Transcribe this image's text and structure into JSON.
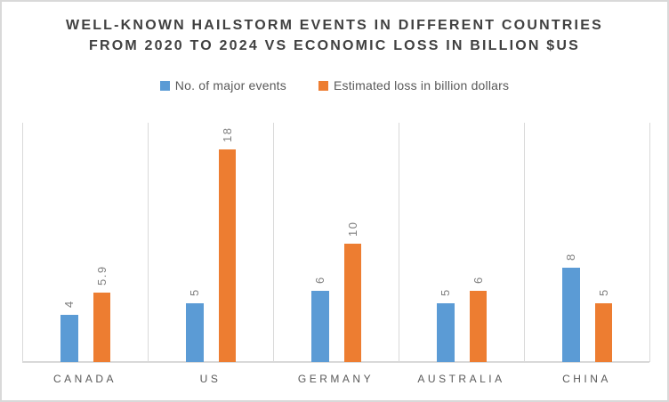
{
  "title": {
    "line1": "WELL-KNOWN HAILSTORM EVENTS IN DIFFERENT COUNTRIES",
    "line2": "FROM 2020 TO 2024 VS ECONOMIC LOSS IN BILLION $US"
  },
  "legend": [
    {
      "label": "No. of major events",
      "color": "#5B9BD5"
    },
    {
      "label": "Estimated loss in billion dollars",
      "color": "#ED7D31"
    }
  ],
  "colors": {
    "events_series": "#5B9BD5",
    "loss_series": "#ED7D31",
    "title_text": "#404040",
    "axis_label_text": "#595959",
    "value_label_text": "#7F7F7F",
    "gridline": "#D9D9D9",
    "border": "#D9D9D9",
    "background": "#FFFFFF"
  },
  "chart_data": {
    "type": "bar",
    "title": "WELL-KNOWN HAILSTORM EVENTS IN DIFFERENT COUNTRIES FROM 2020 TO 2024 VS ECONOMIC LOSS IN BILLION $US",
    "categories": [
      "CANADA",
      "US",
      "GERMANY",
      "AUSTRALIA",
      "CHINA"
    ],
    "series": [
      {
        "name": "No. of major events",
        "color": "#5B9BD5",
        "values": [
          4,
          5,
          6,
          5,
          8
        ],
        "labels": [
          "4",
          "5",
          "6",
          "5",
          "8"
        ]
      },
      {
        "name": "Estimated loss in billion dollars",
        "color": "#ED7D31",
        "values": [
          5.9,
          18,
          10,
          6,
          5
        ],
        "labels": [
          "5.9",
          "18",
          "10",
          "6",
          "5"
        ]
      }
    ],
    "xlabel": "",
    "ylabel": "",
    "ylim": [
      0,
      20
    ],
    "grid": "vertical-category-separators",
    "legend_position": "top-center",
    "value_labels": "rotated-90-reading-bottom-to-top",
    "y_axis_ticks_visible": false
  }
}
